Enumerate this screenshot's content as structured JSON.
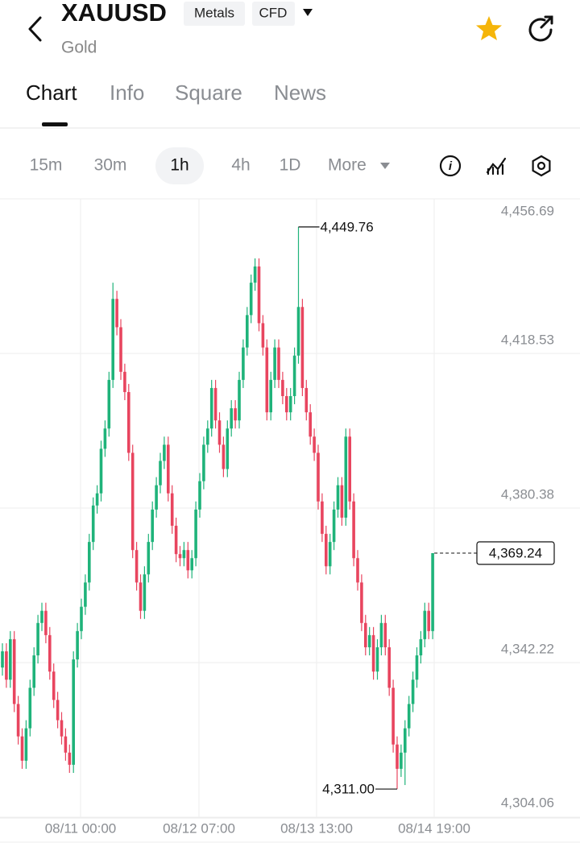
{
  "header": {
    "symbol": "XAUUSD",
    "tags": [
      "Metals",
      "CFD"
    ],
    "subtitle": "Gold"
  },
  "tabs": [
    "Chart",
    "Info",
    "Square",
    "News"
  ],
  "intervals": [
    "15m",
    "30m",
    "1h",
    "4h",
    "1D",
    "More"
  ],
  "chart_data": {
    "type": "candlestick",
    "up_color": "#1fb37a",
    "down_color": "#e8455f",
    "ylim": [
      4304.06,
      4456.69
    ],
    "yticks": [
      {
        "value": 4304.06,
        "label": "4,304.06"
      },
      {
        "value": 4342.22,
        "label": "4,342.22"
      },
      {
        "value": 4380.38,
        "label": "4,380.38"
      },
      {
        "value": 4418.53,
        "label": "4,418.53"
      },
      {
        "value": 4456.69,
        "label": "4,456.69"
      }
    ],
    "x_labels": [
      "08/11 00:00",
      "08/12 07:00",
      "08/13 13:00",
      "08/14 19:00"
    ],
    "high_label": "4,449.76",
    "low_label": "4,311.00",
    "last_label": "4,369.24",
    "candles": [
      [
        4341,
        4347,
        4339,
        4345
      ],
      [
        4345,
        4347,
        4336,
        4338
      ],
      [
        4338,
        4350,
        4336,
        4348
      ],
      [
        4348,
        4350,
        4330,
        4332
      ],
      [
        4332,
        4334,
        4322,
        4324
      ],
      [
        4324,
        4326,
        4316,
        4318
      ],
      [
        4318,
        4328,
        4316,
        4326
      ],
      [
        4326,
        4338,
        4324,
        4336
      ],
      [
        4336,
        4346,
        4334,
        4344
      ],
      [
        4344,
        4354,
        4342,
        4352
      ],
      [
        4352,
        4357,
        4350,
        4355
      ],
      [
        4355,
        4357,
        4347,
        4349
      ],
      [
        4349,
        4351,
        4338,
        4340
      ],
      [
        4340,
        4342,
        4331,
        4333
      ],
      [
        4333,
        4335,
        4326,
        4328
      ],
      [
        4328,
        4330,
        4322,
        4324
      ],
      [
        4324,
        4326,
        4318,
        4320
      ],
      [
        4320,
        4322,
        4315,
        4317
      ],
      [
        4317,
        4345,
        4315,
        4343
      ],
      [
        4343,
        4352,
        4341,
        4350
      ],
      [
        4350,
        4358,
        4348,
        4356
      ],
      [
        4356,
        4364,
        4354,
        4362
      ],
      [
        4362,
        4374,
        4360,
        4372
      ],
      [
        4372,
        4383,
        4370,
        4381
      ],
      [
        4381,
        4386,
        4379,
        4384
      ],
      [
        4384,
        4397,
        4382,
        4395
      ],
      [
        4395,
        4402,
        4393,
        4400
      ],
      [
        4400,
        4414,
        4398,
        4412
      ],
      [
        4412,
        4436,
        4410,
        4432
      ],
      [
        4432,
        4434,
        4423,
        4425
      ],
      [
        4425,
        4427,
        4412,
        4414
      ],
      [
        4414,
        4416,
        4407,
        4409
      ],
      [
        4409,
        4411,
        4392,
        4394
      ],
      [
        4394,
        4396,
        4368,
        4370
      ],
      [
        4370,
        4372,
        4360,
        4362
      ],
      [
        4362,
        4364,
        4353,
        4355
      ],
      [
        4355,
        4366,
        4353,
        4364
      ],
      [
        4364,
        4374,
        4362,
        4372
      ],
      [
        4372,
        4382,
        4370,
        4380
      ],
      [
        4380,
        4388,
        4378,
        4386
      ],
      [
        4386,
        4394,
        4384,
        4392
      ],
      [
        4392,
        4398,
        4390,
        4396
      ],
      [
        4396,
        4398,
        4382,
        4384
      ],
      [
        4384,
        4386,
        4374,
        4376
      ],
      [
        4376,
        4378,
        4367,
        4369
      ],
      [
        4369,
        4371,
        4366,
        4368
      ],
      [
        4368,
        4372,
        4366,
        4370
      ],
      [
        4370,
        4372,
        4363,
        4365
      ],
      [
        4365,
        4370,
        4363,
        4368
      ],
      [
        4368,
        4382,
        4366,
        4380
      ],
      [
        4380,
        4389,
        4378,
        4387
      ],
      [
        4387,
        4398,
        4385,
        4396
      ],
      [
        4396,
        4402,
        4394,
        4400
      ],
      [
        4400,
        4412,
        4398,
        4410
      ],
      [
        4410,
        4412,
        4400,
        4402
      ],
      [
        4402,
        4404,
        4394,
        4396
      ],
      [
        4396,
        4398,
        4388,
        4390
      ],
      [
        4390,
        4402,
        4388,
        4400
      ],
      [
        4400,
        4407,
        4398,
        4405
      ],
      [
        4405,
        4407,
        4400,
        4402
      ],
      [
        4402,
        4414,
        4400,
        4412
      ],
      [
        4412,
        4422,
        4410,
        4420
      ],
      [
        4420,
        4430,
        4418,
        4428
      ],
      [
        4428,
        4438,
        4426,
        4436
      ],
      [
        4436,
        4442,
        4434,
        4440
      ],
      [
        4440,
        4442,
        4424,
        4426
      ],
      [
        4426,
        4428,
        4418,
        4420
      ],
      [
        4420,
        4422,
        4402,
        4404
      ],
      [
        4404,
        4414,
        4402,
        4412
      ],
      [
        4412,
        4422,
        4410,
        4420
      ],
      [
        4420,
        4422,
        4410,
        4412
      ],
      [
        4412,
        4414,
        4406,
        4408
      ],
      [
        4408,
        4410,
        4402,
        4404
      ],
      [
        4404,
        4410,
        4402,
        4408
      ],
      [
        4408,
        4420,
        4406,
        4418
      ],
      [
        4418,
        4449.76,
        4416,
        4430
      ],
      [
        4430,
        4432,
        4408,
        4410
      ],
      [
        4410,
        4412,
        4402,
        4404
      ],
      [
        4404,
        4406,
        4396,
        4398
      ],
      [
        4398,
        4400,
        4392,
        4394
      ],
      [
        4394,
        4396,
        4380,
        4382
      ],
      [
        4382,
        4384,
        4372,
        4374
      ],
      [
        4374,
        4376,
        4364,
        4366
      ],
      [
        4366,
        4374,
        4364,
        4372
      ],
      [
        4372,
        4382,
        4370,
        4380
      ],
      [
        4380,
        4388,
        4378,
        4386
      ],
      [
        4386,
        4388,
        4376,
        4378
      ],
      [
        4378,
        4400,
        4376,
        4398
      ],
      [
        4398,
        4400,
        4380,
        4382
      ],
      [
        4382,
        4384,
        4366,
        4368
      ],
      [
        4368,
        4370,
        4360,
        4362
      ],
      [
        4362,
        4364,
        4350,
        4352
      ],
      [
        4352,
        4354,
        4344,
        4346
      ],
      [
        4346,
        4351,
        4344,
        4349
      ],
      [
        4349,
        4351,
        4338,
        4340
      ],
      [
        4340,
        4348,
        4338,
        4346
      ],
      [
        4346,
        4354,
        4344,
        4352
      ],
      [
        4352,
        4354,
        4344,
        4346
      ],
      [
        4346,
        4348,
        4334,
        4336
      ],
      [
        4336,
        4338,
        4320,
        4322
      ],
      [
        4322,
        4324,
        4311.0,
        4316
      ],
      [
        4316,
        4322,
        4314,
        4320
      ],
      [
        4320,
        4328,
        4312,
        4326
      ],
      [
        4326,
        4334,
        4324,
        4332
      ],
      [
        4332,
        4340,
        4330,
        4338
      ],
      [
        4338,
        4346,
        4336,
        4344
      ],
      [
        4344,
        4350,
        4342,
        4348
      ],
      [
        4348,
        4357,
        4346,
        4355
      ],
      [
        4355,
        4357,
        4348,
        4350
      ],
      [
        4350,
        4369.24,
        4348,
        4369.24
      ]
    ]
  }
}
